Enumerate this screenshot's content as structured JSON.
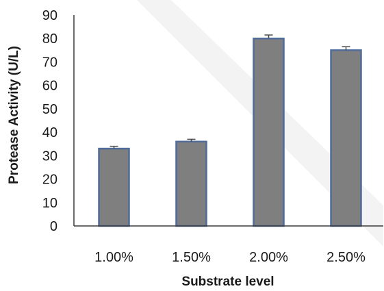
{
  "chart_data": {
    "type": "bar",
    "categories": [
      "1.00%",
      "1.50%",
      "2.00%",
      "2.50%"
    ],
    "values": [
      33,
      36,
      80,
      75
    ],
    "errors": [
      1.0,
      1.0,
      1.5,
      1.5
    ],
    "title": "",
    "xlabel": "Substrate level",
    "ylabel": "Protease Activity (U/L)",
    "ylim": [
      0,
      90
    ],
    "yticks": [
      0,
      10,
      20,
      30,
      40,
      50,
      60,
      70,
      80,
      90
    ],
    "grid": false,
    "legend": "none",
    "colors": {
      "bar_fill": "#7f7f7f",
      "bar_edge": "#4f6c9a",
      "error_bar": "#4a4a4a"
    }
  }
}
